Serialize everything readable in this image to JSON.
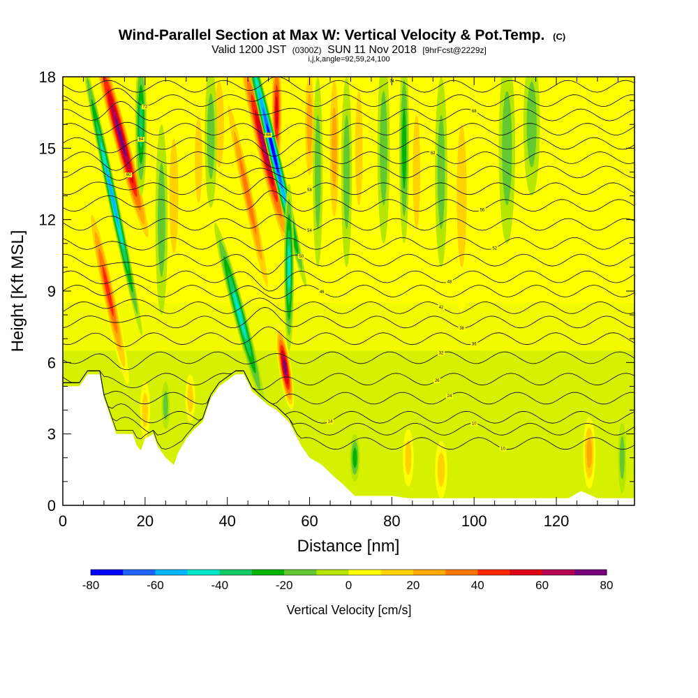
{
  "chart_data": {
    "type": "heatmap",
    "title": "Wind-Parallel Section at Max W: Vertical Velocity & Pot.Temp.",
    "title_mark": "(C)",
    "subtitle_parts": [
      "Valid 1200 JST",
      "(0300Z)",
      "SUN 11 Nov 2018",
      "[9hrFcst@2229z]"
    ],
    "subtitle2": "i,j,k,angle=92,59,24,100",
    "xlabel": "Distance [nm]",
    "ylabel": "Height [Kft MSL]",
    "xlim": [
      0,
      139
    ],
    "ylim": [
      0,
      18
    ],
    "x_ticks": [
      0,
      20,
      40,
      60,
      80,
      100,
      120
    ],
    "y_ticks": [
      0,
      3,
      6,
      9,
      12,
      15,
      18
    ],
    "colorbar": {
      "label": "Vertical Velocity [cm/s]",
      "range": [
        -80,
        80
      ],
      "ticks": [
        -80,
        -60,
        -40,
        -20,
        0,
        20,
        40,
        60,
        80
      ],
      "colors": [
        "#0000ff",
        "#1e64ff",
        "#00b4ff",
        "#00e6c8",
        "#14c864",
        "#00b400",
        "#64c832",
        "#b4e600",
        "#ffff00",
        "#ffd200",
        "#ffaa00",
        "#ff7800",
        "#ff2800",
        "#dc0014",
        "#b40050",
        "#780078"
      ]
    },
    "terrain_kft": [
      [
        0,
        5.0
      ],
      [
        4,
        5.0
      ],
      [
        6,
        5.5
      ],
      [
        9,
        5.5
      ],
      [
        10,
        4.5
      ],
      [
        11,
        4.0
      ],
      [
        12,
        3.5
      ],
      [
        13,
        3.0
      ],
      [
        17,
        3.0
      ],
      [
        18,
        2.5
      ],
      [
        19,
        2.3
      ],
      [
        20,
        2.8
      ],
      [
        21,
        2.9
      ],
      [
        22,
        3.0
      ],
      [
        23,
        2.5
      ],
      [
        25,
        2.0
      ],
      [
        27,
        1.7
      ],
      [
        28,
        2.2
      ],
      [
        30,
        2.8
      ],
      [
        32,
        3.2
      ],
      [
        34,
        3.5
      ],
      [
        36,
        4.5
      ],
      [
        38,
        5.0
      ],
      [
        42,
        5.5
      ],
      [
        44,
        5.5
      ],
      [
        46,
        4.8
      ],
      [
        48,
        4.5
      ],
      [
        50,
        4.2
      ],
      [
        52,
        4.0
      ],
      [
        55,
        3.5
      ],
      [
        58,
        2.5
      ],
      [
        60,
        2.0
      ],
      [
        63,
        1.7
      ],
      [
        66,
        1.2
      ],
      [
        68,
        0.9
      ],
      [
        71,
        0.4
      ],
      [
        77,
        0.4
      ],
      [
        80,
        0.4
      ],
      [
        84,
        0.3
      ],
      [
        123,
        0.3
      ],
      [
        126,
        0.6
      ],
      [
        130,
        0.3
      ],
      [
        139,
        0.3
      ]
    ],
    "series": [
      {
        "kind": "updraft",
        "x": 14,
        "z": 15.5,
        "w": 75,
        "width_nm": 2.0,
        "depth_kft": 5.0,
        "tilt": -0.5
      },
      {
        "kind": "updraft",
        "x": 11,
        "z": 9.0,
        "w": 45,
        "width_nm": 1.6,
        "depth_kft": 4.0,
        "tilt": -0.4
      },
      {
        "kind": "downdraft",
        "x": 12,
        "z": 13.0,
        "w": -55,
        "width_nm": 1.2,
        "depth_kft": 6.0,
        "tilt": -0.4
      },
      {
        "kind": "downdraft",
        "x": 19,
        "z": 16.0,
        "w": -35,
        "width_nm": 1.4,
        "depth_kft": 3.0,
        "tilt": 0
      },
      {
        "kind": "updraft",
        "x": 49,
        "z": 15.0,
        "w": 70,
        "width_nm": 2.0,
        "depth_kft": 5.0,
        "tilt": -0.45
      },
      {
        "kind": "updraft",
        "x": 52,
        "z": 16.5,
        "w": 55,
        "width_nm": 1.4,
        "depth_kft": 3.0,
        "tilt": 0
      },
      {
        "kind": "updraft",
        "x": 54,
        "z": 5.8,
        "w": 80,
        "width_nm": 1.5,
        "depth_kft": 1.8,
        "tilt": -0.3
      },
      {
        "kind": "downdraft",
        "x": 51,
        "z": 15.0,
        "w": -80,
        "width_nm": 1.4,
        "depth_kft": 6.0,
        "tilt": -0.45
      },
      {
        "kind": "downdraft",
        "x": 43,
        "z": 8.0,
        "w": -45,
        "width_nm": 1.5,
        "depth_kft": 4.0,
        "tilt": -0.5
      },
      {
        "kind": "downdraft",
        "x": 55,
        "z": 10.0,
        "w": -45,
        "width_nm": 1.2,
        "depth_kft": 3.5,
        "tilt": 0
      },
      {
        "kind": "updraft",
        "x": 45,
        "z": 13.0,
        "w": 35,
        "width_nm": 1.5,
        "depth_kft": 5.0,
        "tilt": -0.4
      },
      {
        "kind": "updraft",
        "x": 38,
        "z": 16.0,
        "w": 15,
        "width_nm": 2.0,
        "depth_kft": 3.0,
        "tilt": 0
      },
      {
        "kind": "downdraft",
        "x": 36,
        "z": 15.5,
        "w": -20,
        "width_nm": 1.5,
        "depth_kft": 3.0,
        "tilt": 0
      },
      {
        "kind": "updraft",
        "x": 33,
        "z": 14.5,
        "w": 22,
        "width_nm": 1.5,
        "depth_kft": 3.0,
        "tilt": 0
      },
      {
        "kind": "updraft",
        "x": 27,
        "z": 13.0,
        "w": 18,
        "width_nm": 1.8,
        "depth_kft": 4.0,
        "tilt": 0
      },
      {
        "kind": "downdraft",
        "x": 24,
        "z": 12.0,
        "w": -15,
        "width_nm": 1.5,
        "depth_kft": 4.0,
        "tilt": 0
      },
      {
        "kind": "updraft",
        "x": 60,
        "z": 16.0,
        "w": 25,
        "width_nm": 1.5,
        "depth_kft": 3.0,
        "tilt": 0
      },
      {
        "kind": "downdraft",
        "x": 62,
        "z": 14.0,
        "w": -20,
        "width_nm": 1.2,
        "depth_kft": 4.0,
        "tilt": 0
      },
      {
        "kind": "updraft",
        "x": 66,
        "z": 15.0,
        "w": 25,
        "width_nm": 1.5,
        "depth_kft": 4.0,
        "tilt": 0
      },
      {
        "kind": "downdraft",
        "x": 69,
        "z": 14.0,
        "w": -20,
        "width_nm": 1.3,
        "depth_kft": 4.0,
        "tilt": 0
      },
      {
        "kind": "updraft",
        "x": 72,
        "z": 15.0,
        "w": 20,
        "width_nm": 1.5,
        "depth_kft": 4.0,
        "tilt": 0
      },
      {
        "kind": "downdraft",
        "x": 78,
        "z": 15.0,
        "w": -20,
        "width_nm": 1.5,
        "depth_kft": 4.0,
        "tilt": 0
      },
      {
        "kind": "downdraft",
        "x": 83,
        "z": 15.0,
        "w": -25,
        "width_nm": 1.2,
        "depth_kft": 4.0,
        "tilt": 0
      },
      {
        "kind": "updraft",
        "x": 86,
        "z": 14.0,
        "w": 20,
        "width_nm": 1.5,
        "depth_kft": 4.0,
        "tilt": 0
      },
      {
        "kind": "downdraft",
        "x": 92,
        "z": 14.0,
        "w": -20,
        "width_nm": 1.5,
        "depth_kft": 4.0,
        "tilt": 0
      },
      {
        "kind": "updraft",
        "x": 97,
        "z": 13.0,
        "w": 15,
        "width_nm": 2.0,
        "depth_kft": 5.0,
        "tilt": 0
      },
      {
        "kind": "downdraft",
        "x": 108,
        "z": 15.0,
        "w": -20,
        "width_nm": 2.0,
        "depth_kft": 4.0,
        "tilt": 0
      },
      {
        "kind": "downdraft",
        "x": 114,
        "z": 16.0,
        "w": -15,
        "width_nm": 2.0,
        "depth_kft": 3.0,
        "tilt": 0
      },
      {
        "kind": "downdraft",
        "x": 71,
        "z": 2.0,
        "w": -25,
        "width_nm": 1.2,
        "depth_kft": 1.0,
        "tilt": 0
      },
      {
        "kind": "updraft",
        "x": 84,
        "z": 2.0,
        "w": 20,
        "width_nm": 1.3,
        "depth_kft": 1.2,
        "tilt": 0
      },
      {
        "kind": "updraft",
        "x": 92,
        "z": 1.5,
        "w": 15,
        "width_nm": 1.5,
        "depth_kft": 1.2,
        "tilt": 0
      },
      {
        "kind": "updraft",
        "x": 128,
        "z": 2.2,
        "w": 30,
        "width_nm": 1.5,
        "depth_kft": 1.5,
        "tilt": 0
      },
      {
        "kind": "downdraft",
        "x": 136,
        "z": 2.0,
        "w": -20,
        "width_nm": 1.0,
        "depth_kft": 1.5,
        "tilt": 0
      },
      {
        "kind": "updraft",
        "x": 20,
        "z": 4.0,
        "w": 15,
        "width_nm": 1.2,
        "depth_kft": 1.2,
        "tilt": 0
      },
      {
        "kind": "updraft",
        "x": 31,
        "z": 4.5,
        "w": 15,
        "width_nm": 1.2,
        "depth_kft": 1.0,
        "tilt": 0
      },
      {
        "kind": "downdraft",
        "x": 25,
        "z": 4.2,
        "w": -15,
        "width_nm": 1.0,
        "depth_kft": 1.0,
        "tilt": 0
      }
    ],
    "theta_contours": [
      {
        "level": "10",
        "base_kft": 2.6,
        "label_x": 107
      },
      {
        "level": "10",
        "base_kft": 3.2,
        "label_x": 100
      },
      {
        "level": "14",
        "base_kft": 3.7,
        "label_x": 65
      },
      {
        "level": "24",
        "base_kft": 4.5,
        "label_x": 94
      },
      {
        "level": "26",
        "base_kft": 5.3,
        "label_x": 91
      },
      {
        "level": "32",
        "base_kft": 6.2,
        "label_x": 92
      },
      {
        "level": "36",
        "base_kft": 7.0,
        "label_x": 100
      },
      {
        "level": "38",
        "base_kft": 7.7,
        "label_x": 97
      },
      {
        "level": "42",
        "base_kft": 8.3,
        "label_x": 92
      },
      {
        "level": "46",
        "base_kft": 9.0,
        "label_x": 63
      },
      {
        "level": "48",
        "base_kft": 9.6,
        "label_x": 94
      },
      {
        "level": "50",
        "base_kft": 10.3,
        "label_x": 58
      },
      {
        "level": "52",
        "base_kft": 11.0,
        "label_x": 105
      },
      {
        "level": "54",
        "base_kft": 11.8,
        "label_x": 60
      },
      {
        "level": "56",
        "base_kft": 12.6,
        "label_x": 102
      },
      {
        "level": "58",
        "base_kft": 13.3,
        "label_x": 60
      },
      {
        "level": "60",
        "base_kft": 14.0,
        "label_x": 16
      },
      {
        "level": "62",
        "base_kft": 14.6,
        "label_x": 90
      },
      {
        "level": "64",
        "base_kft": 15.2,
        "label_x": 19
      },
      {
        "level": "66",
        "base_kft": 15.8,
        "label_x": 50
      },
      {
        "level": "68",
        "base_kft": 16.4,
        "label_x": 100
      },
      {
        "level": "72",
        "base_kft": 17.0,
        "label_x": 20
      },
      {
        "level": "74",
        "base_kft": 17.6,
        "label_x": 80
      }
    ]
  }
}
